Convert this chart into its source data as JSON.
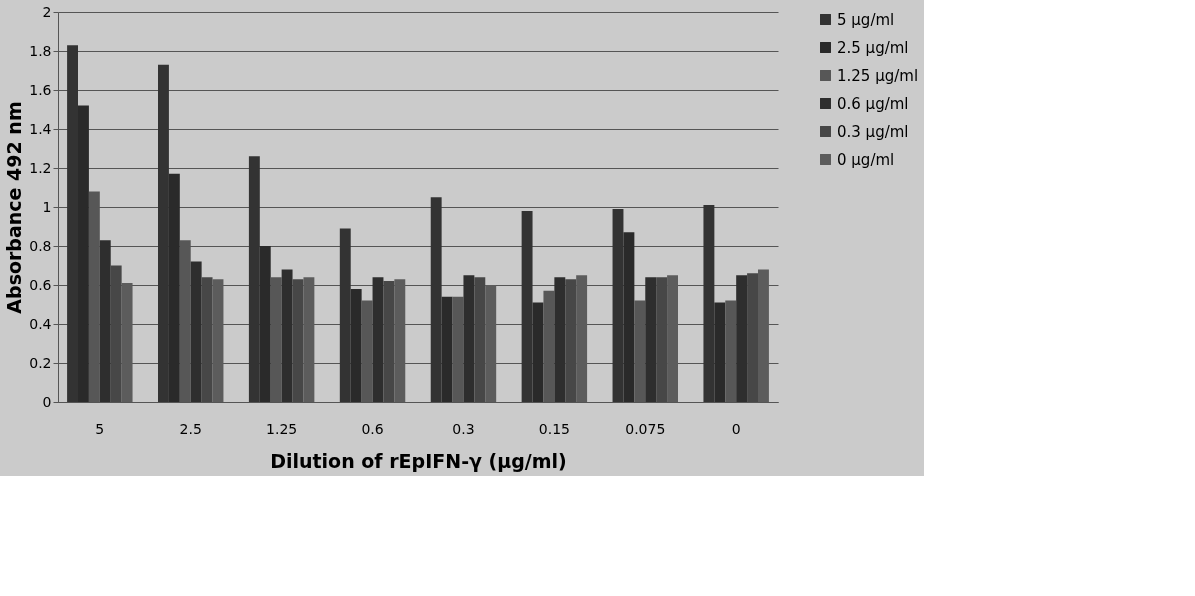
{
  "chart_data": {
    "type": "bar",
    "xlabel": "Dilution of rEpIFN-γ (µg/ml)",
    "ylabel": "Absorbance  492 nm",
    "categories": [
      "5",
      "2.5",
      "1.25",
      "0.6",
      "0.3",
      "0.15",
      "0.075",
      "0"
    ],
    "series": [
      {
        "name": "5 µg/ml",
        "color": "#333333",
        "values": [
          1.83,
          1.73,
          1.26,
          0.89,
          1.05,
          0.98,
          0.99,
          1.01
        ]
      },
      {
        "name": "2.5 µg/ml",
        "color": "#2a2a2a",
        "values": [
          1.52,
          1.17,
          0.8,
          0.58,
          0.54,
          0.51,
          0.87,
          0.51
        ]
      },
      {
        "name": "1.25 µg/ml",
        "color": "#575757",
        "values": [
          1.08,
          0.83,
          0.64,
          0.52,
          0.54,
          0.57,
          0.52,
          0.52
        ]
      },
      {
        "name": "0.6 µg/ml",
        "color": "#2e2e2e",
        "values": [
          0.83,
          0.72,
          0.68,
          0.64,
          0.65,
          0.64,
          0.64,
          0.65
        ]
      },
      {
        "name": "0.3 µg/ml",
        "color": "#474747",
        "values": [
          0.7,
          0.64,
          0.63,
          0.62,
          0.64,
          0.63,
          0.64,
          0.66
        ]
      },
      {
        "name": "0 µg/ml",
        "color": "#5c5c5c",
        "values": [
          0.61,
          0.63,
          0.64,
          0.63,
          0.6,
          0.65,
          0.65,
          0.68
        ]
      }
    ],
    "ylim": [
      0,
      2
    ],
    "yticks": [
      0,
      0.2,
      0.4,
      0.6,
      0.8,
      1,
      1.2,
      1.4,
      1.6,
      1.8,
      2
    ],
    "grid": "y",
    "legend": "right"
  }
}
